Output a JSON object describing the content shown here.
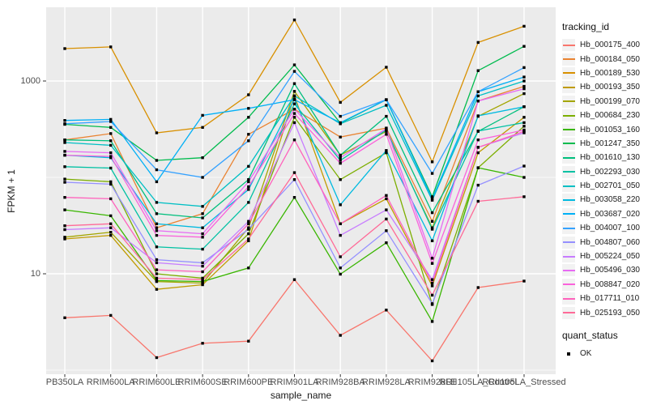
{
  "chart_data": {
    "type": "line",
    "title": "",
    "xlabel": "sample_name",
    "ylabel": "FPKM + 1",
    "y_scale": "log10",
    "y_axis_tick_labels": [
      "1000",
      "10"
    ],
    "y_major_ticks": [
      1000,
      10
    ],
    "y_minor_gridlines": [
      100,
      1
    ],
    "ylim": [
      0.9,
      5800
    ],
    "grid": true,
    "legend_position": "right",
    "point_shape": "square",
    "point_color": "#000000",
    "categories": [
      "PB350LA",
      "RRIM600LA",
      "RRIM600LE",
      "RRIM600SE",
      "RRIM600PE",
      "RRIM901LA",
      "RRIM928BA",
      "RRIM928LA",
      "RRIM928LE",
      "RRII105LA_Control",
      "RRII105LA_Stressed"
    ],
    "series": [
      {
        "name": "Hb_000175_400",
        "color": "#F8766D",
        "values": [
          3.5,
          3.7,
          1.35,
          1.9,
          2.0,
          8.7,
          2.3,
          4.2,
          1.25,
          7.2,
          8.4
        ]
      },
      {
        "name": "Hb_000184_050",
        "color": "#EA8331",
        "values": [
          245,
          285,
          30,
          42,
          280,
          510,
          262,
          325,
          35,
          620,
          880
        ]
      },
      {
        "name": "Hb_000189_530",
        "color": "#D89000",
        "values": [
          2170,
          2260,
          290,
          330,
          720,
          4300,
          600,
          1390,
          145,
          2510,
          3700
        ]
      },
      {
        "name": "Hb_000193_350",
        "color": "#C09B00",
        "values": [
          23,
          25,
          6.9,
          7.7,
          22,
          700,
          33,
          60,
          7.5,
          180,
          420
        ]
      },
      {
        "name": "Hb_000199_070",
        "color": "#A3A500",
        "values": [
          24,
          27,
          8.3,
          8.0,
          30,
          780,
          170,
          300,
          30,
          430,
          740
        ]
      },
      {
        "name": "Hb_000684_230",
        "color": "#7CAE00",
        "values": [
          96,
          90,
          10,
          9,
          26,
          420,
          95,
          180,
          4.8,
          126,
          340
        ]
      },
      {
        "name": "Hb_001053_160",
        "color": "#39B600",
        "values": [
          46,
          40,
          8.5,
          8.3,
          11.5,
          62,
          9.9,
          21,
          3.2,
          126,
          100
        ]
      },
      {
        "name": "Hb_001247_350",
        "color": "#00BB4E",
        "values": [
          355,
          330,
          150,
          160,
          420,
          1470,
          365,
          640,
          63,
          1280,
          2290
        ]
      },
      {
        "name": "Hb_001610_130",
        "color": "#00BF7D",
        "values": [
          245,
          240,
          42,
          38,
          95,
          940,
          170,
          430,
          43,
          300,
          540
        ]
      },
      {
        "name": "Hb_002293_030",
        "color": "#00C1A3",
        "values": [
          129,
          125,
          19,
          18,
          55,
          580,
          150,
          310,
          29,
          303,
          370
        ]
      },
      {
        "name": "Hb_002701_050",
        "color": "#00BFC4",
        "values": [
          230,
          215,
          55,
          50,
          130,
          700,
          360,
          560,
          58,
          700,
          1000
        ]
      },
      {
        "name": "Hb_003058_220",
        "color": "#00BAE0",
        "values": [
          170,
          160,
          33,
          30,
          75,
          650,
          52,
          190,
          22,
          435,
          540
        ]
      },
      {
        "name": "Hb_003687_020",
        "color": "#00B0F6",
        "values": [
          390,
          400,
          90,
          440,
          520,
          640,
          370,
          640,
          60,
          775,
          1100
        ]
      },
      {
        "name": "Hb_004007_100",
        "color": "#35A2FF",
        "values": [
          360,
          380,
          120,
          100,
          240,
          1260,
          430,
          640,
          110,
          775,
          1380
        ]
      },
      {
        "name": "Hb_004807_060",
        "color": "#9590FF",
        "values": [
          89,
          85,
          14,
          13,
          29,
          95,
          11.5,
          28,
          4.9,
          83,
          131
        ]
      },
      {
        "name": "Hb_005224_050",
        "color": "#C77CFF",
        "values": [
          28.7,
          30,
          13,
          12,
          35,
          370,
          25,
          46,
          8.7,
          205,
          290
        ]
      },
      {
        "name": "Hb_005496_030",
        "color": "#E76BF3",
        "values": [
          186,
          180,
          28,
          26,
          90,
          510,
          160,
          320,
          14.5,
          620,
          830
        ]
      },
      {
        "name": "Hb_008847_020",
        "color": "#FA62DB",
        "values": [
          170,
          165,
          25,
          24,
          80,
          460,
          140,
          280,
          12.8,
          245,
          310
        ]
      },
      {
        "name": "Hb_017711_010",
        "color": "#FF62BC",
        "values": [
          62,
          60,
          11,
          10.5,
          33,
          245,
          33,
          65,
          8,
          205,
          300
        ]
      },
      {
        "name": "Hb_025193_050",
        "color": "#FF6A98",
        "values": [
          31.5,
          33,
          9,
          8.7,
          23,
          112,
          15,
          37,
          6,
          56.5,
          63
        ]
      }
    ],
    "legend": {
      "color_title": "tracking_id",
      "shape_title": "quant_status",
      "shape_items": [
        {
          "label": "OK",
          "shape": "square",
          "color": "#000000"
        }
      ]
    },
    "style": {
      "panel_bg": "#EBEBEB",
      "gridline_color": "#FFFFFF",
      "tick_color": "#333333",
      "tick_label_color": "#4D4D4D"
    }
  }
}
